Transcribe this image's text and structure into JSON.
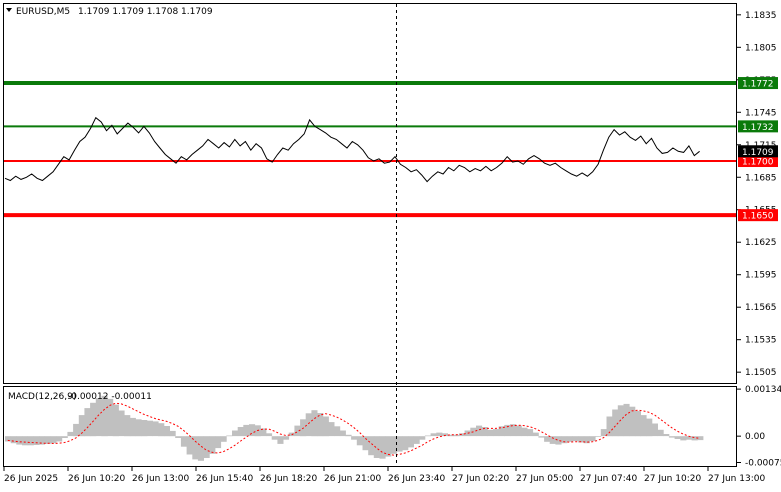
{
  "header": {
    "symbol_timeframe": "EURUSD,M5",
    "ohlc": "1.1709 1.1709 1.1708 1.1709"
  },
  "macd_header": {
    "label": "MACD(12,26,9)",
    "values": "-0.00012 -0.00011"
  },
  "colors": {
    "background": "#ffffff",
    "price_line": "#000000",
    "green_level": "#0a7a0a",
    "red_level": "#ff0000",
    "histogram": "#c0c0c0",
    "signal_line": "#ff0000",
    "crosshair": "#000000"
  },
  "chart_data": [
    {
      "type": "line",
      "title": "EURUSD,M5",
      "ylim": [
        1.1495,
        1.1845
      ],
      "y_ticks": [
        "1.1835",
        "1.1805",
        "1.1775",
        "1.1745",
        "1.1715",
        "1.1685",
        "1.1655",
        "1.1625",
        "1.1595",
        "1.1565",
        "1.1535",
        "1.1505"
      ],
      "x_ticks": [
        "26 Jun 2025",
        "26 Jun 10:20",
        "26 Jun 13:00",
        "26 Jun 15:40",
        "26 Jun 18:20",
        "26 Jun 21:00",
        "26 Jun 23:40",
        "27 Jun 02:20",
        "27 Jun 05:00",
        "27 Jun 07:40",
        "27 Jun 10:20",
        "27 Jun 13:00"
      ],
      "current_price_label": "1.1709",
      "levels": [
        {
          "value": 1.1772,
          "label": "1.1772",
          "color": "#0a7a0a",
          "thick": true
        },
        {
          "value": 1.1732,
          "label": "1.1732",
          "color": "#0a7a0a",
          "thick": false
        },
        {
          "value": 1.17,
          "label": "1.1700",
          "color": "#ff0000",
          "thick": false
        },
        {
          "value": 1.165,
          "label": "1.1650",
          "color": "#ff0000",
          "thick": true
        }
      ],
      "series": [
        {
          "values": [
            1.1684,
            1.1682,
            1.1686,
            1.1683,
            1.1685,
            1.1688,
            1.1684,
            1.1682,
            1.1686,
            1.169,
            1.1697,
            1.1704,
            1.1701,
            1.171,
            1.1718,
            1.1722,
            1.173,
            1.174,
            1.1736,
            1.1728,
            1.1733,
            1.1725,
            1.173,
            1.1735,
            1.1731,
            1.1726,
            1.1732,
            1.1726,
            1.1718,
            1.1712,
            1.1706,
            1.1702,
            1.1698,
            1.1704,
            1.1701,
            1.1706,
            1.171,
            1.1714,
            1.172,
            1.1716,
            1.1712,
            1.1717,
            1.1713,
            1.172,
            1.1714,
            1.1718,
            1.171,
            1.1716,
            1.1712,
            1.1702,
            1.1699,
            1.1706,
            1.1712,
            1.171,
            1.1716,
            1.172,
            1.1725,
            1.1738,
            1.1732,
            1.1729,
            1.1726,
            1.1722,
            1.172,
            1.1716,
            1.1712,
            1.1718,
            1.1715,
            1.171,
            1.1703,
            1.17,
            1.1702,
            1.1698,
            1.1699,
            1.1704,
            1.1697,
            1.1694,
            1.169,
            1.1692,
            1.1687,
            1.1681,
            1.1686,
            1.169,
            1.1688,
            1.1694,
            1.1691,
            1.1696,
            1.1694,
            1.169,
            1.1693,
            1.1691,
            1.1695,
            1.1691,
            1.1694,
            1.1698,
            1.1704,
            1.1699,
            1.17,
            1.1697,
            1.1702,
            1.1705,
            1.1702,
            1.1698,
            1.1696,
            1.1698,
            1.1694,
            1.1691,
            1.1688,
            1.1686,
            1.1689,
            1.1686,
            1.169,
            1.1697,
            1.171,
            1.1722,
            1.1729,
            1.1724,
            1.1727,
            1.1722,
            1.1719,
            1.1723,
            1.1716,
            1.1721,
            1.1712,
            1.1707,
            1.1708,
            1.1712,
            1.1709,
            1.1708,
            1.1714,
            1.1705,
            1.1709
          ]
        }
      ]
    },
    {
      "type": "bar",
      "title": "MACD(12,26,9)",
      "ylim": [
        -0.00085,
        0.0014
      ],
      "y_ticks": [
        "0.00134",
        "0.00",
        "-0.00075"
      ],
      "histogram": [
        -0.00015,
        -0.0002,
        -0.00024,
        -0.00026,
        -0.00026,
        -0.00025,
        -0.00024,
        -0.00022,
        -0.0002,
        -0.00015,
        -5e-05,
        0.00012,
        0.00035,
        0.0006,
        0.0008,
        0.00095,
        0.00108,
        0.00115,
        0.00106,
        0.0009,
        0.00073,
        0.0006,
        0.00052,
        0.00048,
        0.00046,
        0.00044,
        0.00042,
        0.00037,
        0.00029,
        0.00015,
        -5e-05,
        -0.0003,
        -0.00052,
        -0.00066,
        -0.0007,
        -0.00062,
        -0.0005,
        -0.00034,
        -0.00016,
        2e-05,
        0.00016,
        0.00026,
        0.00032,
        0.00034,
        0.00031,
        0.00022,
        8e-05,
        -0.0001,
        -0.00022,
        -0.0001,
        0.0001,
        0.0003,
        0.00048,
        0.00065,
        0.00074,
        0.00066,
        0.00056,
        0.0004,
        0.00028,
        0.00016,
        4e-05,
        -0.0001,
        -0.00026,
        -0.0004,
        -0.00054,
        -0.00062,
        -0.00064,
        -0.00058,
        -0.0005,
        -0.00044,
        -0.0004,
        -0.00032,
        -0.00022,
        -0.0001,
        2e-05,
        8e-05,
        0.0001,
        8e-05,
        4e-05,
        4e-05,
        8e-05,
        0.00016,
        0.00024,
        0.0003,
        0.00026,
        0.00018,
        0.0002,
        0.00028,
        0.00032,
        0.00034,
        0.0003,
        0.00024,
        0.0002,
        0.0001,
        -4e-05,
        -0.00016,
        -0.00022,
        -0.00024,
        -0.0002,
        -0.00016,
        -0.00014,
        -0.00018,
        -0.0002,
        -0.00014,
        -2e-05,
        0.0002,
        0.00056,
        0.00076,
        0.00088,
        0.00092,
        0.00084,
        0.00072,
        0.0006,
        0.0005,
        0.00036,
        0.00018,
        6e-05,
        -4e-05,
        -8e-05,
        -0.00012,
        -0.0001,
        -0.00012,
        -0.00011
      ],
      "signal": [
        -0.00012,
        -0.00014,
        -0.00016,
        -0.00017,
        -0.00018,
        -0.00019,
        -0.0002,
        -0.0002,
        -0.00021,
        -0.0002,
        -0.00018,
        -0.00013,
        -5e-05,
        8e-05,
        0.00024,
        0.00042,
        0.0006,
        0.00076,
        0.00088,
        0.00094,
        0.00092,
        0.00086,
        0.00078,
        0.0007,
        0.00062,
        0.00056,
        0.0005,
        0.00046,
        0.00042,
        0.00036,
        0.00028,
        0.00016,
        2e-05,
        -0.00014,
        -0.00028,
        -0.0004,
        -0.00046,
        -0.00048,
        -0.00044,
        -0.00036,
        -0.00026,
        -0.00014,
        -3e-05,
        8e-05,
        0.00016,
        0.0002,
        0.0002,
        0.00014,
        6e-05,
        2e-05,
        4e-05,
        0.00012,
        0.00022,
        0.00036,
        0.0005,
        0.0006,
        0.00064,
        0.0006,
        0.00054,
        0.00046,
        0.00036,
        0.00024,
        0.0001,
        -6e-05,
        -0.0002,
        -0.00034,
        -0.00046,
        -0.00052,
        -0.00054,
        -0.00052,
        -0.00048,
        -0.00042,
        -0.00034,
        -0.00026,
        -0.00016,
        -8e-05,
        -2e-05,
        2e-05,
        4e-05,
        4e-05,
        5e-05,
        8e-05,
        0.00012,
        0.00018,
        0.00022,
        0.00022,
        0.00022,
        0.00024,
        0.00027,
        0.0003,
        0.00031,
        0.0003,
        0.00027,
        0.00021,
        0.00013,
        4e-05,
        -5e-05,
        -0.00012,
        -0.00016,
        -0.00017,
        -0.00016,
        -0.00016,
        -0.00017,
        -0.00016,
        -0.00012,
        -4e-05,
        0.0001,
        0.00028,
        0.00046,
        0.00062,
        0.00072,
        0.00074,
        0.00072,
        0.00068,
        0.0006,
        0.00048,
        0.00036,
        0.00024,
        0.00014,
        6e-05,
        0.0,
        -4e-05,
        -6e-05
      ]
    }
  ]
}
